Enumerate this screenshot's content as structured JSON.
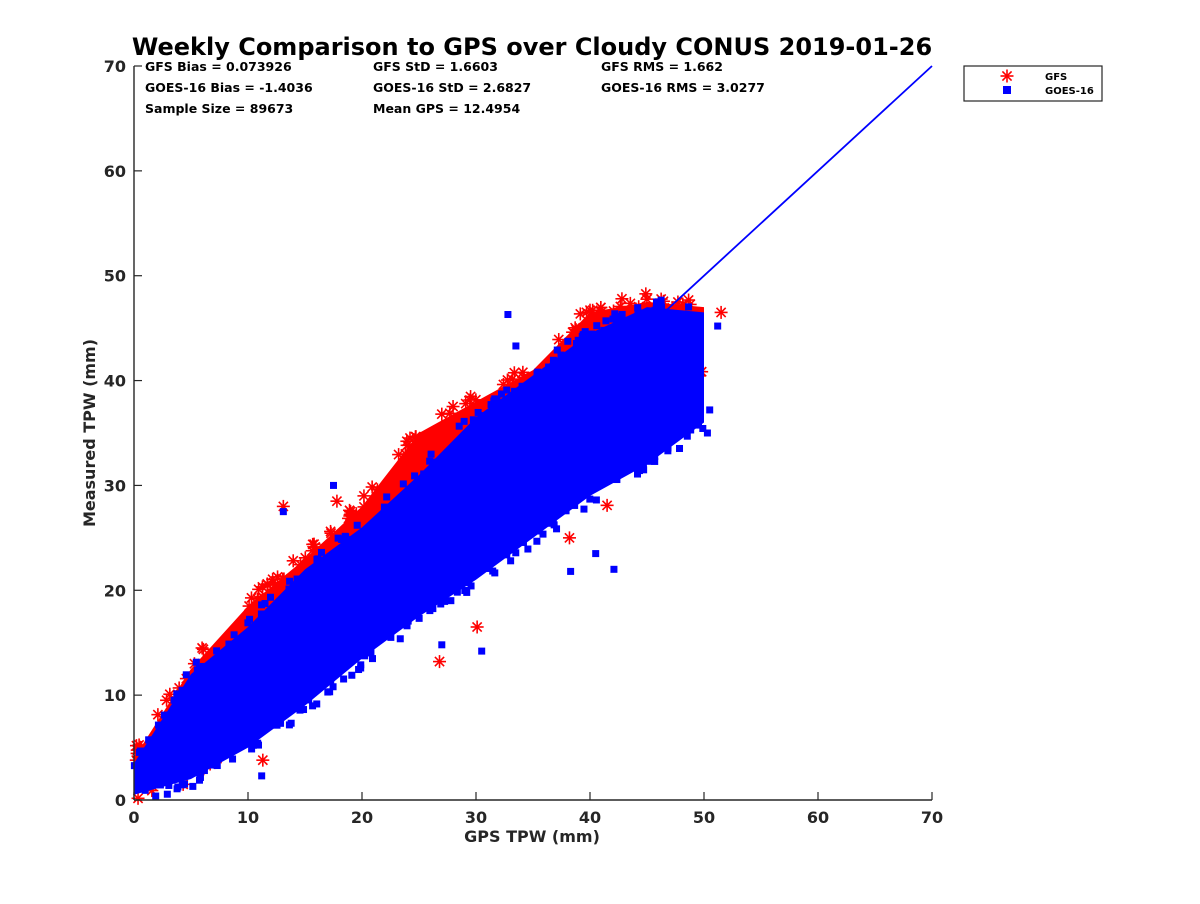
{
  "chart_data": {
    "type": "scatter",
    "title": "Weekly Comparison to GPS over Cloudy CONUS 2019-01-26",
    "xlabel": "GPS TPW (mm)",
    "ylabel": "Measured TPW (mm)",
    "xlim": [
      0,
      70
    ],
    "ylim": [
      0,
      70
    ],
    "xticks": [
      "0",
      "10",
      "20",
      "30",
      "40",
      "50",
      "60",
      "70"
    ],
    "yticks": [
      "0",
      "10",
      "20",
      "30",
      "40",
      "50",
      "60",
      "70"
    ],
    "grid": false,
    "legend_position": "outside top-right",
    "stats": [
      [
        "GFS Bias = 0.073926",
        "GFS StD = 1.6603",
        "GFS RMS = 1.662"
      ],
      [
        "GOES-16 Bias = -1.4036",
        "GOES-16 StD = 2.6827",
        "GOES-16 RMS = 3.0277"
      ],
      [
        "Sample Size = 89673",
        "Mean GPS = 12.4954"
      ]
    ],
    "series": [
      {
        "name": "GFS",
        "marker": "asterisk",
        "color": "#ff0000",
        "envelope": {
          "x": [
            0,
            5,
            10,
            15,
            20,
            25,
            30,
            35,
            40,
            45,
            50
          ],
          "ymin": [
            0.5,
            2.5,
            6.5,
            11.5,
            16,
            20.5,
            25,
            29.5,
            33,
            38,
            41
          ],
          "ymax": [
            4,
            12.5,
            18.5,
            23,
            28,
            35,
            38,
            41,
            46.5,
            47.5,
            47
          ]
        },
        "outliers": [
          {
            "x": 13.1,
            "y": 28.0
          },
          {
            "x": 17.8,
            "y": 28.5
          },
          {
            "x": 30.1,
            "y": 16.5
          },
          {
            "x": 26.8,
            "y": 13.2
          },
          {
            "x": 11.3,
            "y": 3.8
          },
          {
            "x": 41.5,
            "y": 28.1
          },
          {
            "x": 38.2,
            "y": 25.0
          },
          {
            "x": 51.5,
            "y": 46.5
          },
          {
            "x": 42.8,
            "y": 47.8
          },
          {
            "x": 29.1,
            "y": 37.8
          },
          {
            "x": 27.0,
            "y": 36.8
          },
          {
            "x": 9.5,
            "y": 16.5
          },
          {
            "x": 10.8,
            "y": 18.3
          },
          {
            "x": 0.2,
            "y": 3.8
          },
          {
            "x": 5.3,
            "y": 13.0
          },
          {
            "x": 23.8,
            "y": 33.0
          }
        ]
      },
      {
        "name": "GOES-16",
        "marker": "square",
        "color": "#0000ff",
        "envelope": {
          "x": [
            0,
            5,
            10,
            15,
            20,
            25,
            30,
            35,
            40,
            45,
            50
          ],
          "ymin": [
            0.5,
            2,
            5,
            9,
            13.5,
            17.5,
            21,
            25,
            29,
            32,
            36
          ],
          "ymax": [
            3.5,
            12,
            16.5,
            22,
            26,
            31,
            36.5,
            40.5,
            44.5,
            47,
            46.5
          ]
        },
        "outliers": [
          {
            "x": 13.1,
            "y": 27.5
          },
          {
            "x": 17.5,
            "y": 30.0
          },
          {
            "x": 32.8,
            "y": 46.3
          },
          {
            "x": 50.5,
            "y": 37.2
          },
          {
            "x": 50.3,
            "y": 35.0
          },
          {
            "x": 27.0,
            "y": 14.8
          },
          {
            "x": 30.5,
            "y": 14.2
          },
          {
            "x": 11.2,
            "y": 2.3
          },
          {
            "x": 42.1,
            "y": 22.0
          },
          {
            "x": 38.3,
            "y": 21.8
          },
          {
            "x": 40.5,
            "y": 23.5
          },
          {
            "x": 46.7,
            "y": 45.0
          },
          {
            "x": 51.2,
            "y": 45.2
          },
          {
            "x": 45.2,
            "y": 36.0
          },
          {
            "x": 33.5,
            "y": 43.3
          }
        ]
      },
      {
        "name": "",
        "type": "line",
        "color": "#0000ff",
        "x": [
          46,
          70
        ],
        "y": [
          46,
          70
        ]
      }
    ]
  }
}
